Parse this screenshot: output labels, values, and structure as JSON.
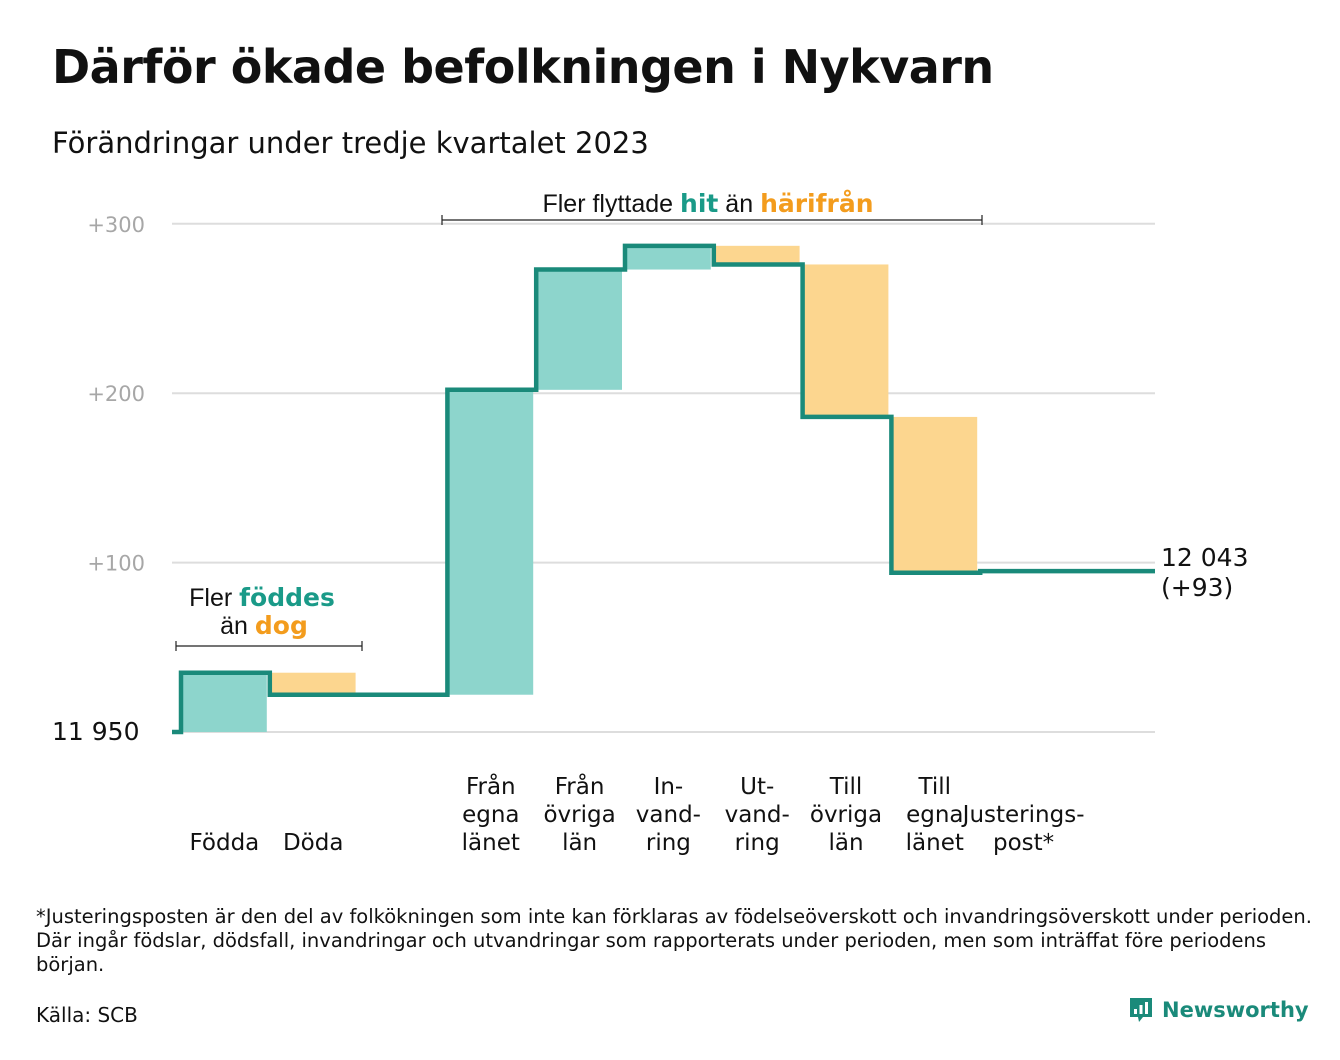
{
  "title": "Därför ökade befolkningen i Nykvarn",
  "subtitle": "Förändringar under tredje kvartalet 2023",
  "chart_data": {
    "type": "waterfall",
    "start_value": 11950,
    "start_label": "11 950",
    "end_value": 12043,
    "end_label": "12 043",
    "end_change_label": "(+93)",
    "y_ticks": [
      {
        "value": 100,
        "label": "+100"
      },
      {
        "value": 200,
        "label": "+200"
      },
      {
        "value": 300,
        "label": "+300"
      }
    ],
    "ylim": [
      0,
      300
    ],
    "grid": true,
    "steps": [
      {
        "label": [
          "Födda"
        ],
        "change": 35
      },
      {
        "label": [
          "Döda"
        ],
        "change": -13
      },
      {
        "label": [],
        "change": 0
      },
      {
        "label": [
          "Från",
          "egna",
          "länet"
        ],
        "change": 180
      },
      {
        "label": [
          "Från",
          "övriga",
          "län"
        ],
        "change": 71
      },
      {
        "label": [
          "In-",
          "vand-",
          "ring"
        ],
        "change": 14
      },
      {
        "label": [
          "Ut-",
          "vand-",
          "ring"
        ],
        "change": -11
      },
      {
        "label": [
          "Till",
          "övriga",
          "län"
        ],
        "change": -90
      },
      {
        "label": [
          "Till",
          "egna",
          "länet"
        ],
        "change": -92
      },
      {
        "label": [
          "Justerings-",
          "post*"
        ],
        "change": 1
      }
    ],
    "annotations": {
      "births": {
        "line1_prefix": "Fler ",
        "line1_highlight": "föddes",
        "line2_prefix": "än ",
        "line2_highlight": "dog"
      },
      "migration": {
        "prefix": "Fler flyttade ",
        "highlight_in": "hit",
        "middle": " än ",
        "highlight_out": "härifrån"
      }
    }
  },
  "colors": {
    "increase_fill": "#8dd5cc",
    "decrease_fill": "#fcd68f",
    "line": "#1a8a7a",
    "highlight_in": "#1a9a88",
    "highlight_out": "#f39c1d",
    "grid": "#dddddd"
  },
  "footnote": "*Justeringsposten är den del av folkökningen som inte kan förklaras av födelseöverskott och invandringsöverskott under perioden. Där ingår födslar, dödsfall, invandringar och utvandringar som rapporterats under perioden, men som inträffat före periodens början.",
  "source": "Källa: SCB",
  "brand": {
    "name": "Newsworthy",
    "logo_icon": "newsworthy-logo-icon"
  }
}
